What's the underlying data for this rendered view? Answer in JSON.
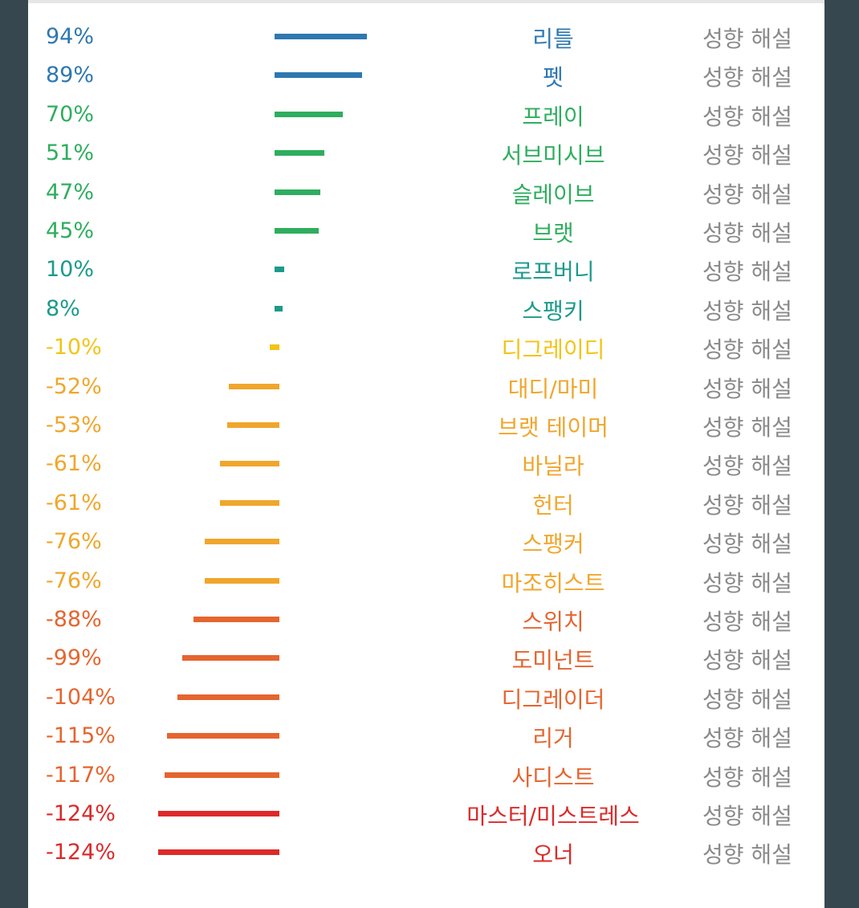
{
  "chart_data": {
    "type": "bar",
    "orientation": "horizontal",
    "unit": "%",
    "categories": [
      "리틀",
      "펫",
      "프레이",
      "서브미시브",
      "슬레이브",
      "브랫",
      "로프버니",
      "스팽키",
      "디그레이디",
      "대디/마미",
      "브랫 테이머",
      "바닐라",
      "헌터",
      "스팽커",
      "마조히스트",
      "스위치",
      "도미넌트",
      "디그레이더",
      "리거",
      "사디스트",
      "마스터/미스트레스",
      "오너"
    ],
    "values": [
      94,
      89,
      70,
      51,
      47,
      45,
      10,
      8,
      -10,
      -52,
      -53,
      -61,
      -61,
      -76,
      -76,
      -88,
      -99,
      -104,
      -115,
      -117,
      -124,
      -124
    ],
    "value_labels": [
      "94%",
      "89%",
      "70%",
      "51%",
      "47%",
      "45%",
      "10%",
      "8%",
      "-10%",
      "-52%",
      "-53%",
      "-61%",
      "-61%",
      "-76%",
      "-76%",
      "-88%",
      "-99%",
      "-104%",
      "-115%",
      "-117%",
      "-124%",
      "-124%"
    ],
    "colors": [
      "#2e78b0",
      "#2e78b0",
      "#2eae5e",
      "#2eae5e",
      "#2eae5e",
      "#2eae5e",
      "#1c9a8c",
      "#1c9a8c",
      "#f2c417",
      "#f0a62c",
      "#f0a62c",
      "#f0a62c",
      "#f0a62c",
      "#f0a62c",
      "#f0a62c",
      "#e5652f",
      "#e5652f",
      "#e5652f",
      "#e5652f",
      "#e5652f",
      "#dc2a2a",
      "#dc2a2a"
    ],
    "action_label": "성향 해설",
    "grid": false,
    "legend": "none"
  }
}
